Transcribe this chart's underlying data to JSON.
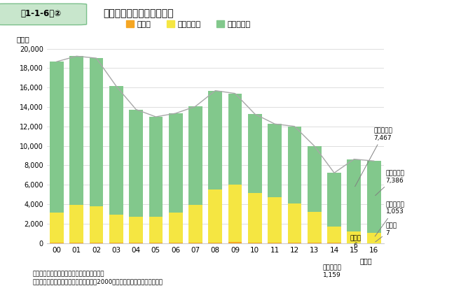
{
  "years": [
    "00",
    "01",
    "02",
    "03",
    "04",
    "05",
    "06",
    "07",
    "08",
    "09",
    "10",
    "11",
    "12",
    "13",
    "14",
    "15",
    "16"
  ],
  "large": [
    60,
    75,
    70,
    50,
    45,
    40,
    45,
    60,
    80,
    90,
    70,
    55,
    55,
    30,
    20,
    6,
    7
  ],
  "medium": [
    3100,
    3850,
    3750,
    2900,
    2650,
    2650,
    3100,
    3900,
    5400,
    5900,
    5100,
    4700,
    4050,
    3200,
    1700,
    1159,
    1053
  ],
  "small": [
    15500,
    15300,
    15200,
    13200,
    11050,
    10300,
    10200,
    10100,
    10200,
    9400,
    8100,
    7500,
    7900,
    6750,
    5500,
    7467,
    7386
  ],
  "line_total": [
    18660,
    19225,
    19020,
    16150,
    13745,
    12990,
    13345,
    14060,
    15680,
    15390,
    13270,
    12255,
    12005,
    9980,
    7220,
    8632,
    8446
  ],
  "color_large": "#f5a623",
  "color_medium": "#f5e642",
  "color_small": "#82c88c",
  "color_line": "#a8a8a8",
  "ylim": [
    0,
    20000
  ],
  "yticks": [
    0,
    2000,
    4000,
    6000,
    8000,
    10000,
    12000,
    14000,
    16000,
    18000,
    20000
  ],
  "ylabel": "（件）",
  "legend_labels": [
    "大企業",
    "中規模企業",
    "小規模企業"
  ],
  "source": "資料：（株）東京商工リサーチ「倒産月報」\n（注）　企業規模別の集計については、2000年以降のみ集計を行っている。",
  "nendo_label": "（年）",
  "header_label": "第1-1-6図②",
  "header_title": "企業規模別倒産件数の推移"
}
